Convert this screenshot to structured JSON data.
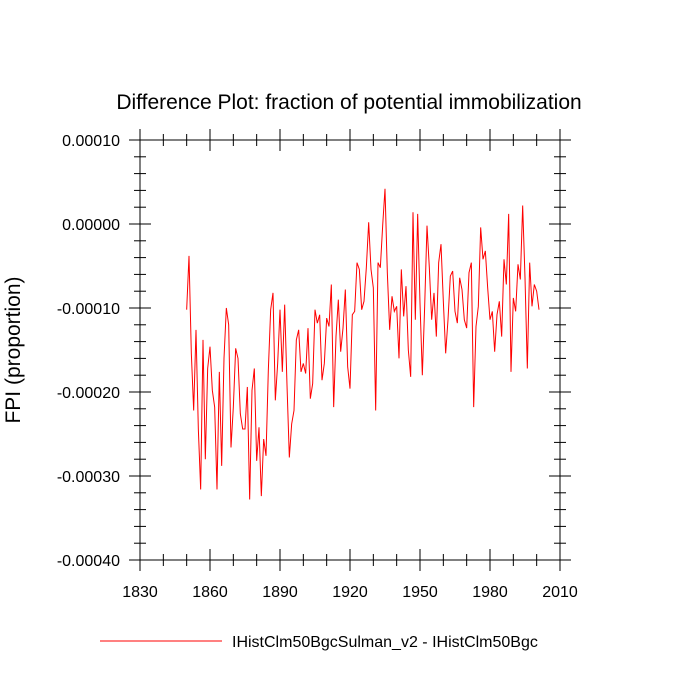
{
  "chart_data": {
    "type": "line",
    "title": "Difference Plot: fraction of potential immobilization",
    "xlabel": "",
    "ylabel": "FPI  (proportion)",
    "xlim": [
      1830,
      2010
    ],
    "ylim": [
      -0.0004,
      0.0001
    ],
    "x_ticks": [
      1830,
      1860,
      1890,
      1920,
      1950,
      1980,
      2010
    ],
    "x_tick_labels": [
      "1830",
      "1860",
      "1890",
      "1920",
      "1950",
      "1980",
      "2010"
    ],
    "y_ticks": [
      0.0001,
      0.0,
      -0.0001,
      -0.0002,
      -0.0003,
      -0.0004
    ],
    "y_tick_labels": [
      "0.00010",
      "0.00000",
      "-0.00010",
      "-0.00020",
      "-0.00030",
      "-0.00040"
    ],
    "grid": false,
    "legend_position": "bottom",
    "series": [
      {
        "name": "IHistClm50BgcSulman_v2 - IHistClm50Bgc",
        "color": "#ff0000",
        "x_start": 1850,
        "x_step": 1,
        "values": [
          -0.000102,
          -3.8e-05,
          -0.000154,
          -0.000222,
          -0.000126,
          -0.000244,
          -0.000316,
          -0.000138,
          -0.00028,
          -0.000172,
          -0.000146,
          -0.000198,
          -0.000218,
          -0.000316,
          -0.000176,
          -0.000288,
          -0.00016,
          -0.0001,
          -0.00012,
          -0.000266,
          -0.000218,
          -0.000148,
          -0.00016,
          -0.000226,
          -0.000244,
          -0.000244,
          -0.000194,
          -0.000328,
          -0.000198,
          -0.000172,
          -0.000282,
          -0.000242,
          -0.000324,
          -0.000256,
          -0.000276,
          -0.000174,
          -0.000102,
          -8.2e-05,
          -0.00021,
          -0.000166,
          -0.000102,
          -0.000176,
          -9.6e-05,
          -0.000192,
          -0.000278,
          -0.000238,
          -0.000222,
          -0.000138,
          -0.000126,
          -0.000176,
          -0.000166,
          -0.000178,
          -0.000124,
          -0.000208,
          -0.00019,
          -0.000102,
          -0.000118,
          -0.000108,
          -0.000186,
          -0.000166,
          -0.000112,
          -0.000122,
          -7.2e-05,
          -0.000218,
          -0.000134,
          -9e-05,
          -0.000152,
          -0.000124,
          -7.8e-05,
          -0.00017,
          -0.000196,
          -0.000108,
          -0.000104,
          -4.6e-05,
          -5.4e-05,
          -0.000102,
          -9.2e-05,
          -5.2e-05,
          2e-06,
          -5.4e-05,
          -7.6e-05,
          -0.000222,
          -4.6e-05,
          -5.2e-05,
          -2e-06,
          4.2e-05,
          -5.8e-05,
          -0.000126,
          -8.6e-05,
          -0.000104,
          -9.8e-05,
          -0.00016,
          -5.4e-05,
          -0.00011,
          -7.4e-05,
          -0.00015,
          -0.000182,
          1.4e-05,
          -0.000114,
          1.2e-05,
          -9.4e-05,
          -0.00018,
          -9.8e-05,
          -2e-06,
          -5.2e-05,
          -0.000114,
          -8.2e-05,
          -0.000134,
          -4.6e-05,
          -2.4e-05,
          -9.2e-05,
          -0.000154,
          -0.000114,
          -6.2e-05,
          -5.6e-05,
          -0.000104,
          -0.000118,
          -6.4e-05,
          -7.8e-05,
          -0.000114,
          -0.000124,
          -5.8e-05,
          -4.6e-05,
          -0.000218,
          -0.000122,
          -9.8e-05,
          -4e-06,
          -4.2e-05,
          -3.2e-05,
          -7.6e-05,
          -0.000114,
          -0.000104,
          -0.000152,
          -0.000108,
          -9.2e-05,
          -0.000134,
          -4.2e-05,
          -7.2e-05,
          1.2e-05,
          -0.000176,
          -8.8e-05,
          -0.000104,
          -4.8e-05,
          -6.6e-05,
          2.2e-05,
          -6.4e-05,
          -0.000172,
          -4.6e-05,
          -9.8e-05,
          -7.2e-05,
          -8e-05,
          -0.000102
        ]
      }
    ]
  }
}
